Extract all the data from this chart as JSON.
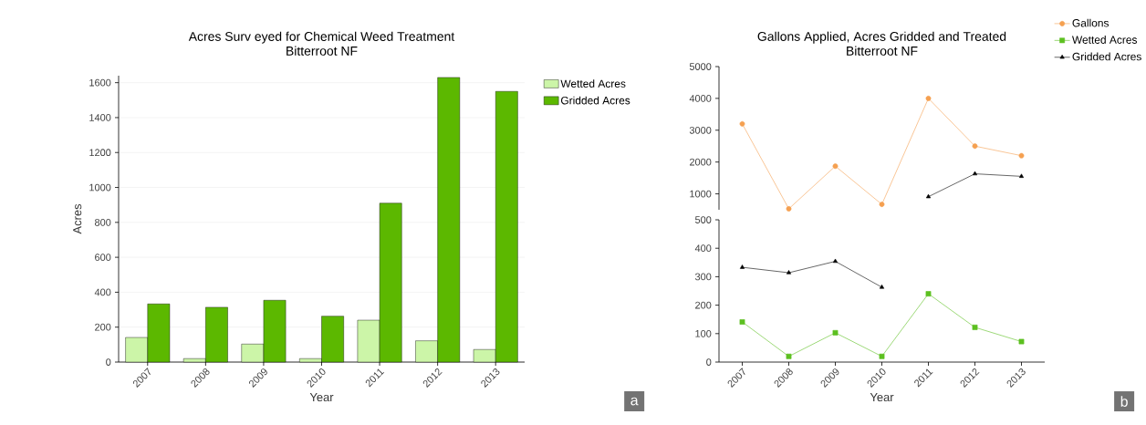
{
  "chart_data": [
    {
      "type": "bar",
      "title": "Acres Surv eyed for Chemical Weed Treatment",
      "subtitle": "Bitterroot NF",
      "xlabel": "Year",
      "ylabel": "Acres",
      "categories": [
        "2007",
        "2008",
        "2009",
        "2010",
        "2011",
        "2012",
        "2013"
      ],
      "series": [
        {
          "name": "Wetted Acres",
          "color": "#ccf5a8",
          "values": [
            141,
            20,
            103,
            20,
            240,
            122,
            72
          ]
        },
        {
          "name": "Gridded Acres",
          "color": "#5cb800",
          "values": [
            333,
            314,
            354,
            263,
            910,
            1630,
            1550
          ]
        }
      ],
      "ylim": [
        0,
        1640
      ],
      "yticks": [
        0,
        200,
        400,
        600,
        800,
        1000,
        1200,
        1400,
        1600
      ],
      "grid": "y",
      "legend": "top right",
      "annotations": [
        "a"
      ]
    },
    {
      "type": "line",
      "title": "Gallons Applied, Acres Gridded and Treated",
      "subtitle": "Bitterroot NF",
      "categories": [
        "2007",
        "2008",
        "2009",
        "2010",
        "2011",
        "2012",
        "2013"
      ],
      "series": [
        {
          "name": "Gallons",
          "color": "#f5a050",
          "marker": "circle",
          "values": [
            3200,
            530,
            1870,
            670,
            4000,
            2500,
            2200
          ]
        },
        {
          "name": "Wetted Acres",
          "color": "#5cc020",
          "marker": "square",
          "values": [
            null,
            null,
            null,
            null,
            null,
            null,
            null
          ]
        },
        {
          "name": "Gridded Acres",
          "color": "#000000",
          "marker": "triangle",
          "values": [
            null,
            null,
            null,
            null,
            910,
            1630,
            1550
          ]
        }
      ],
      "ylim": [
        500,
        5000
      ],
      "yticks": [
        1000,
        2000,
        3000,
        4000,
        5000
      ],
      "legend": "top right",
      "tick_labels": "y"
    },
    {
      "type": "line",
      "xlabel": "Year",
      "categories": [
        "2007",
        "2008",
        "2009",
        "2010",
        "2011",
        "2012",
        "2013"
      ],
      "series": [
        {
          "color": "#5cc020",
          "marker": "square",
          "values": [
            141,
            20,
            103,
            20,
            240,
            122,
            72
          ]
        },
        {
          "color": "#000000",
          "marker": "triangle",
          "values": [
            333,
            314,
            354,
            263,
            null,
            null,
            null
          ]
        }
      ],
      "ylim": [
        0,
        500
      ],
      "yticks": [
        0,
        100,
        200,
        300,
        400,
        500
      ],
      "annotations": [
        "b"
      ]
    }
  ]
}
